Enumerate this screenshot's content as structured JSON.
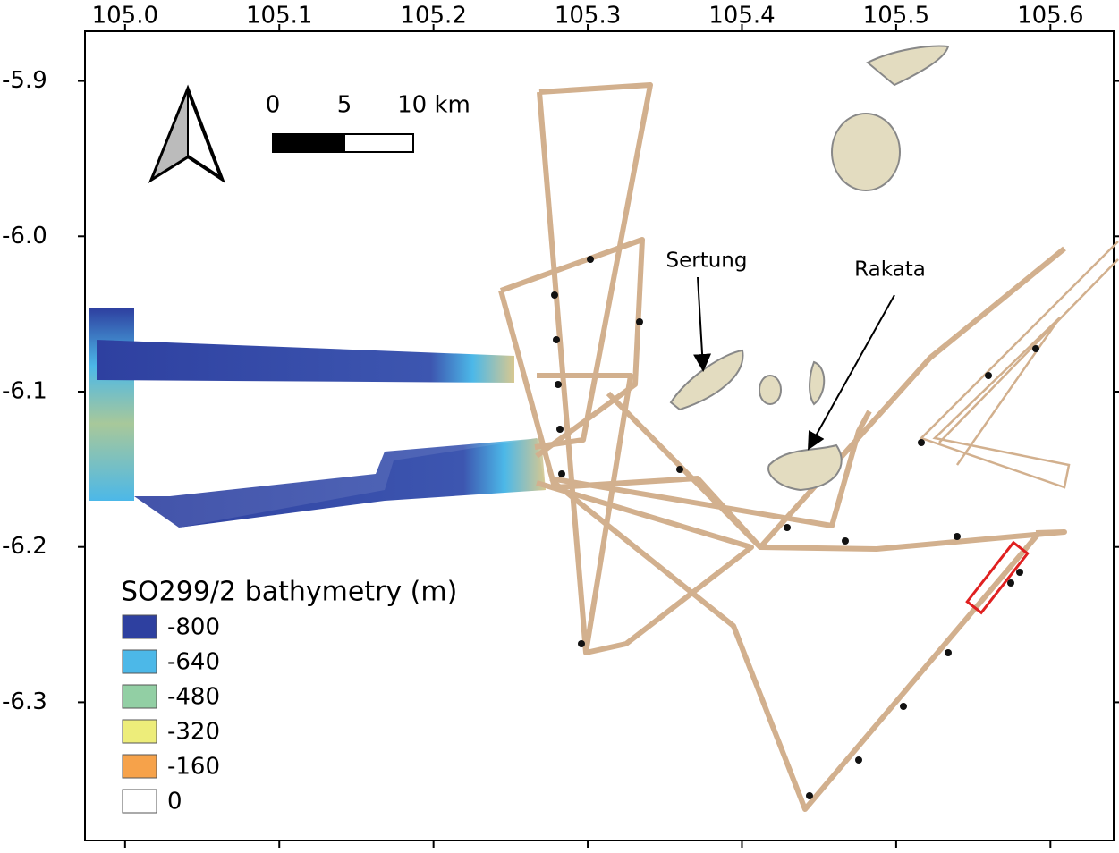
{
  "chart_data": {
    "type": "map",
    "xlim": [
      104.974,
      105.641
    ],
    "ylim": [
      -6.389,
      -5.868
    ],
    "xticks": [
      {
        "value": 105.0,
        "label": "105.0"
      },
      105.1,
      105.2,
      105.3,
      105.4,
      105.5,
      105.6
    ],
    "yticks": [
      -5.9,
      {
        "value": -6.0,
        "label": "-6.0"
      },
      -6.1,
      -6.2,
      -6.3
    ],
    "scale_bar": {
      "labels": [
        0,
        5,
        "10 km"
      ]
    },
    "annotations": [
      "Sertung",
      "Rakata"
    ],
    "legend": {
      "title": "SO299/2 bathymetry (m)",
      "items": [
        {
          "value": -800,
          "color": "#2e40a0"
        },
        {
          "value": -640,
          "color": "#4cb8e8"
        },
        {
          "value": -480,
          "color": "#92cfa4"
        },
        {
          "value": -320,
          "color": "#eded7a"
        },
        {
          "value": -160,
          "color": "#f6a24a"
        },
        {
          "value": 0,
          "color": "#ffffff"
        }
      ]
    }
  }
}
